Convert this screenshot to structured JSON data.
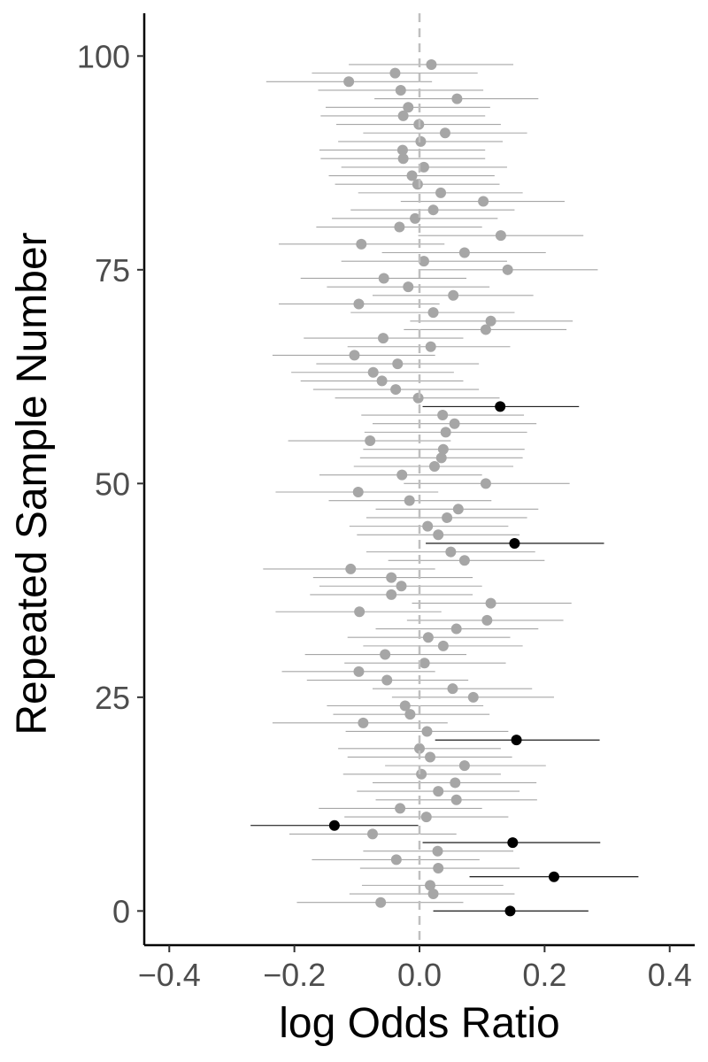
{
  "chart_data": {
    "type": "scatter",
    "xlabel": "log Odds Ratio",
    "ylabel": "Repeated Sample Number",
    "xlim": [
      -0.44,
      0.44
    ],
    "ylim": [
      -4,
      105
    ],
    "x_ticks": [
      -0.4,
      -0.2,
      0.0,
      0.2,
      0.4
    ],
    "x_tick_labels": [
      "−0.4",
      "−0.2",
      "0.0",
      "0.2",
      "0.4"
    ],
    "y_ticks": [
      0,
      25,
      50,
      75,
      100
    ],
    "y_tick_labels": [
      "0",
      "25",
      "50",
      "75",
      "100"
    ],
    "reference_line_x": 0,
    "grid": false,
    "legend": "none",
    "colors": {
      "covers_zero": "#a6a6a6",
      "excludes_zero": "#000000",
      "reference_line": "#bfbfbf",
      "axis": "#000000"
    },
    "points": [
      {
        "sample": 0,
        "estimate": 0.145,
        "lower": 0.022,
        "upper": 0.27,
        "excludes_zero": true
      },
      {
        "sample": 1,
        "estimate": -0.062,
        "lower": -0.196,
        "upper": 0.07,
        "excludes_zero": false
      },
      {
        "sample": 2,
        "estimate": 0.022,
        "lower": -0.112,
        "upper": 0.152,
        "excludes_zero": false
      },
      {
        "sample": 3,
        "estimate": 0.017,
        "lower": -0.092,
        "upper": 0.134,
        "excludes_zero": false
      },
      {
        "sample": 4,
        "estimate": 0.215,
        "lower": 0.08,
        "upper": 0.35,
        "excludes_zero": true
      },
      {
        "sample": 5,
        "estimate": 0.03,
        "lower": -0.095,
        "upper": 0.16,
        "excludes_zero": false
      },
      {
        "sample": 6,
        "estimate": -0.037,
        "lower": -0.172,
        "upper": 0.096,
        "excludes_zero": false
      },
      {
        "sample": 7,
        "estimate": 0.029,
        "lower": -0.09,
        "upper": 0.15,
        "excludes_zero": false
      },
      {
        "sample": 8,
        "estimate": 0.149,
        "lower": 0.005,
        "upper": 0.289,
        "excludes_zero": true
      },
      {
        "sample": 9,
        "estimate": -0.075,
        "lower": -0.208,
        "upper": 0.059,
        "excludes_zero": false
      },
      {
        "sample": 10,
        "estimate": -0.136,
        "lower": -0.27,
        "upper": -0.002,
        "excludes_zero": true
      },
      {
        "sample": 11,
        "estimate": 0.011,
        "lower": -0.12,
        "upper": 0.142,
        "excludes_zero": false
      },
      {
        "sample": 12,
        "estimate": -0.031,
        "lower": -0.161,
        "upper": 0.1,
        "excludes_zero": false
      },
      {
        "sample": 13,
        "estimate": 0.059,
        "lower": -0.07,
        "upper": 0.188,
        "excludes_zero": false
      },
      {
        "sample": 14,
        "estimate": 0.03,
        "lower": -0.1,
        "upper": 0.16,
        "excludes_zero": false
      },
      {
        "sample": 15,
        "estimate": 0.057,
        "lower": -0.075,
        "upper": 0.187,
        "excludes_zero": false
      },
      {
        "sample": 16,
        "estimate": 0.003,
        "lower": -0.122,
        "upper": 0.13,
        "excludes_zero": false
      },
      {
        "sample": 17,
        "estimate": 0.072,
        "lower": -0.055,
        "upper": 0.202,
        "excludes_zero": false
      },
      {
        "sample": 18,
        "estimate": 0.017,
        "lower": -0.115,
        "upper": 0.148,
        "excludes_zero": false
      },
      {
        "sample": 19,
        "estimate": 0.0,
        "lower": -0.13,
        "upper": 0.13,
        "excludes_zero": false
      },
      {
        "sample": 20,
        "estimate": 0.155,
        "lower": 0.025,
        "upper": 0.288,
        "excludes_zero": true
      },
      {
        "sample": 21,
        "estimate": 0.012,
        "lower": -0.118,
        "upper": 0.142,
        "excludes_zero": false
      },
      {
        "sample": 22,
        "estimate": -0.09,
        "lower": -0.235,
        "upper": 0.045,
        "excludes_zero": false
      },
      {
        "sample": 23,
        "estimate": -0.015,
        "lower": -0.138,
        "upper": 0.112,
        "excludes_zero": false
      },
      {
        "sample": 24,
        "estimate": -0.023,
        "lower": -0.148,
        "upper": 0.102,
        "excludes_zero": false
      },
      {
        "sample": 25,
        "estimate": 0.086,
        "lower": -0.044,
        "upper": 0.215,
        "excludes_zero": false
      },
      {
        "sample": 26,
        "estimate": 0.053,
        "lower": -0.075,
        "upper": 0.18,
        "excludes_zero": false
      },
      {
        "sample": 27,
        "estimate": -0.052,
        "lower": -0.18,
        "upper": 0.078,
        "excludes_zero": false
      },
      {
        "sample": 28,
        "estimate": -0.097,
        "lower": -0.22,
        "upper": 0.025,
        "excludes_zero": false
      },
      {
        "sample": 29,
        "estimate": 0.008,
        "lower": -0.12,
        "upper": 0.138,
        "excludes_zero": false
      },
      {
        "sample": 30,
        "estimate": -0.055,
        "lower": -0.183,
        "upper": 0.075,
        "excludes_zero": false
      },
      {
        "sample": 31,
        "estimate": 0.038,
        "lower": -0.09,
        "upper": 0.165,
        "excludes_zero": false
      },
      {
        "sample": 32,
        "estimate": 0.014,
        "lower": -0.115,
        "upper": 0.145,
        "excludes_zero": false
      },
      {
        "sample": 33,
        "estimate": 0.059,
        "lower": -0.07,
        "upper": 0.19,
        "excludes_zero": false
      },
      {
        "sample": 34,
        "estimate": 0.108,
        "lower": -0.02,
        "upper": 0.23,
        "excludes_zero": false
      },
      {
        "sample": 35,
        "estimate": -0.096,
        "lower": -0.23,
        "upper": 0.035,
        "excludes_zero": false
      },
      {
        "sample": 36,
        "estimate": 0.114,
        "lower": -0.012,
        "upper": 0.243,
        "excludes_zero": false
      },
      {
        "sample": 37,
        "estimate": -0.045,
        "lower": -0.175,
        "upper": 0.085,
        "excludes_zero": false
      },
      {
        "sample": 38,
        "estimate": -0.029,
        "lower": -0.16,
        "upper": 0.1,
        "excludes_zero": false
      },
      {
        "sample": 39,
        "estimate": -0.045,
        "lower": -0.17,
        "upper": 0.085,
        "excludes_zero": false
      },
      {
        "sample": 40,
        "estimate": -0.11,
        "lower": -0.25,
        "upper": 0.025,
        "excludes_zero": false
      },
      {
        "sample": 41,
        "estimate": 0.072,
        "lower": -0.05,
        "upper": 0.2,
        "excludes_zero": false
      },
      {
        "sample": 42,
        "estimate": 0.05,
        "lower": -0.085,
        "upper": 0.185,
        "excludes_zero": false
      },
      {
        "sample": 43,
        "estimate": 0.152,
        "lower": 0.01,
        "upper": 0.295,
        "excludes_zero": true
      },
      {
        "sample": 44,
        "estimate": 0.03,
        "lower": -0.1,
        "upper": 0.16,
        "excludes_zero": false
      },
      {
        "sample": 45,
        "estimate": 0.013,
        "lower": -0.112,
        "upper": 0.142,
        "excludes_zero": false
      },
      {
        "sample": 46,
        "estimate": 0.044,
        "lower": -0.085,
        "upper": 0.172,
        "excludes_zero": false
      },
      {
        "sample": 47,
        "estimate": 0.062,
        "lower": -0.07,
        "upper": 0.19,
        "excludes_zero": false
      },
      {
        "sample": 48,
        "estimate": -0.016,
        "lower": -0.145,
        "upper": 0.115,
        "excludes_zero": false
      },
      {
        "sample": 49,
        "estimate": -0.098,
        "lower": -0.23,
        "upper": 0.03,
        "excludes_zero": false
      },
      {
        "sample": 50,
        "estimate": 0.106,
        "lower": -0.025,
        "upper": 0.24,
        "excludes_zero": false
      },
      {
        "sample": 51,
        "estimate": -0.028,
        "lower": -0.16,
        "upper": 0.1,
        "excludes_zero": false
      },
      {
        "sample": 52,
        "estimate": 0.024,
        "lower": -0.105,
        "upper": 0.15,
        "excludes_zero": false
      },
      {
        "sample": 53,
        "estimate": 0.035,
        "lower": -0.095,
        "upper": 0.165,
        "excludes_zero": false
      },
      {
        "sample": 54,
        "estimate": 0.038,
        "lower": -0.09,
        "upper": 0.168,
        "excludes_zero": false
      },
      {
        "sample": 55,
        "estimate": -0.079,
        "lower": -0.21,
        "upper": 0.05,
        "excludes_zero": false
      },
      {
        "sample": 56,
        "estimate": 0.042,
        "lower": -0.088,
        "upper": 0.172,
        "excludes_zero": false
      },
      {
        "sample": 57,
        "estimate": 0.056,
        "lower": -0.075,
        "upper": 0.187,
        "excludes_zero": false
      },
      {
        "sample": 58,
        "estimate": 0.037,
        "lower": -0.093,
        "upper": 0.167,
        "excludes_zero": false
      },
      {
        "sample": 59,
        "estimate": 0.129,
        "lower": 0.005,
        "upper": 0.255,
        "excludes_zero": true
      },
      {
        "sample": 60,
        "estimate": -0.002,
        "lower": -0.135,
        "upper": 0.128,
        "excludes_zero": false
      },
      {
        "sample": 61,
        "estimate": -0.038,
        "lower": -0.17,
        "upper": 0.095,
        "excludes_zero": false
      },
      {
        "sample": 62,
        "estimate": -0.06,
        "lower": -0.19,
        "upper": 0.07,
        "excludes_zero": false
      },
      {
        "sample": 63,
        "estimate": -0.074,
        "lower": -0.205,
        "upper": 0.055,
        "excludes_zero": false
      },
      {
        "sample": 64,
        "estimate": -0.035,
        "lower": -0.165,
        "upper": 0.095,
        "excludes_zero": false
      },
      {
        "sample": 65,
        "estimate": -0.104,
        "lower": -0.235,
        "upper": 0.025,
        "excludes_zero": false
      },
      {
        "sample": 66,
        "estimate": 0.018,
        "lower": -0.115,
        "upper": 0.145,
        "excludes_zero": false
      },
      {
        "sample": 67,
        "estimate": -0.058,
        "lower": -0.185,
        "upper": 0.07,
        "excludes_zero": false
      },
      {
        "sample": 68,
        "estimate": 0.106,
        "lower": -0.025,
        "upper": 0.235,
        "excludes_zero": false
      },
      {
        "sample": 69,
        "estimate": 0.114,
        "lower": -0.015,
        "upper": 0.245,
        "excludes_zero": false
      },
      {
        "sample": 70,
        "estimate": 0.022,
        "lower": -0.11,
        "upper": 0.152,
        "excludes_zero": false
      },
      {
        "sample": 71,
        "estimate": -0.097,
        "lower": -0.225,
        "upper": 0.032,
        "excludes_zero": false
      },
      {
        "sample": 72,
        "estimate": 0.054,
        "lower": -0.075,
        "upper": 0.182,
        "excludes_zero": false
      },
      {
        "sample": 73,
        "estimate": -0.018,
        "lower": -0.148,
        "upper": 0.112,
        "excludes_zero": false
      },
      {
        "sample": 74,
        "estimate": -0.057,
        "lower": -0.19,
        "upper": 0.075,
        "excludes_zero": false
      },
      {
        "sample": 75,
        "estimate": 0.141,
        "lower": 0.0,
        "upper": 0.285,
        "excludes_zero": false
      },
      {
        "sample": 76,
        "estimate": 0.007,
        "lower": -0.125,
        "upper": 0.14,
        "excludes_zero": false
      },
      {
        "sample": 77,
        "estimate": 0.072,
        "lower": -0.06,
        "upper": 0.202,
        "excludes_zero": false
      },
      {
        "sample": 78,
        "estimate": -0.093,
        "lower": -0.225,
        "upper": 0.04,
        "excludes_zero": false
      },
      {
        "sample": 79,
        "estimate": 0.13,
        "lower": -0.002,
        "upper": 0.262,
        "excludes_zero": false
      },
      {
        "sample": 80,
        "estimate": -0.032,
        "lower": -0.165,
        "upper": 0.1,
        "excludes_zero": false
      },
      {
        "sample": 81,
        "estimate": -0.007,
        "lower": -0.14,
        "upper": 0.125,
        "excludes_zero": false
      },
      {
        "sample": 82,
        "estimate": 0.022,
        "lower": -0.11,
        "upper": 0.152,
        "excludes_zero": false
      },
      {
        "sample": 83,
        "estimate": 0.102,
        "lower": -0.03,
        "upper": 0.232,
        "excludes_zero": false
      },
      {
        "sample": 84,
        "estimate": 0.034,
        "lower": -0.098,
        "upper": 0.165,
        "excludes_zero": false
      },
      {
        "sample": 85,
        "estimate": -0.003,
        "lower": -0.135,
        "upper": 0.128,
        "excludes_zero": false
      },
      {
        "sample": 86,
        "estimate": -0.012,
        "lower": -0.145,
        "upper": 0.12,
        "excludes_zero": false
      },
      {
        "sample": 87,
        "estimate": 0.007,
        "lower": -0.125,
        "upper": 0.14,
        "excludes_zero": false
      },
      {
        "sample": 88,
        "estimate": -0.026,
        "lower": -0.158,
        "upper": 0.105,
        "excludes_zero": false
      },
      {
        "sample": 89,
        "estimate": -0.027,
        "lower": -0.16,
        "upper": 0.105,
        "excludes_zero": false
      },
      {
        "sample": 90,
        "estimate": 0.002,
        "lower": -0.13,
        "upper": 0.133,
        "excludes_zero": false
      },
      {
        "sample": 91,
        "estimate": 0.041,
        "lower": -0.09,
        "upper": 0.172,
        "excludes_zero": false
      },
      {
        "sample": 92,
        "estimate": -0.001,
        "lower": -0.133,
        "upper": 0.13,
        "excludes_zero": false
      },
      {
        "sample": 93,
        "estimate": -0.026,
        "lower": -0.158,
        "upper": 0.105,
        "excludes_zero": false
      },
      {
        "sample": 94,
        "estimate": -0.018,
        "lower": -0.15,
        "upper": 0.113,
        "excludes_zero": false
      },
      {
        "sample": 95,
        "estimate": 0.06,
        "lower": -0.072,
        "upper": 0.19,
        "excludes_zero": false
      },
      {
        "sample": 96,
        "estimate": -0.03,
        "lower": -0.162,
        "upper": 0.102,
        "excludes_zero": false
      },
      {
        "sample": 97,
        "estimate": -0.113,
        "lower": -0.245,
        "upper": 0.02,
        "excludes_zero": false
      },
      {
        "sample": 98,
        "estimate": -0.039,
        "lower": -0.172,
        "upper": 0.093,
        "excludes_zero": false
      },
      {
        "sample": 99,
        "estimate": 0.019,
        "lower": -0.113,
        "upper": 0.15,
        "excludes_zero": false
      }
    ]
  }
}
